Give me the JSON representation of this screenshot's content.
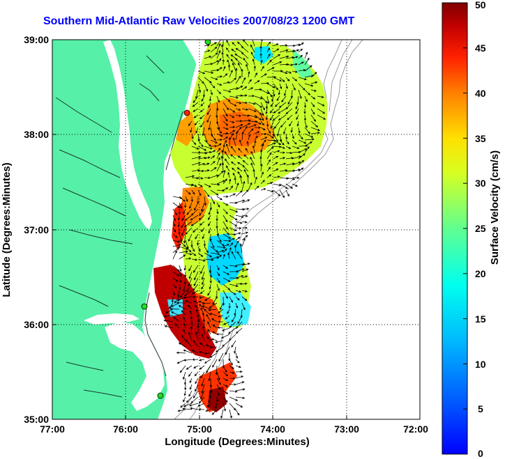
{
  "title": "Southern Mid-Atlantic Raw Velocities 2007/08/23 1200 GMT",
  "xaxis": {
    "label": "Longitude (Degrees:Minutes)",
    "ticks": [
      "77:00",
      "76:00",
      "75:00",
      "74:00",
      "73:00",
      "72:00"
    ]
  },
  "yaxis": {
    "label": "Latitude (Degrees:Minutes)",
    "ticks": [
      "39:00",
      "38:00",
      "37:00",
      "36:00",
      "35:00"
    ]
  },
  "colorbar": {
    "label": "Surface Velocity (cm/s)",
    "ticks": [
      "50",
      "45",
      "40",
      "35",
      "30",
      "25",
      "20",
      "15",
      "10",
      "5",
      "0"
    ],
    "min": 0,
    "max": 50
  },
  "colors": {
    "land": "#56f0a8",
    "title": "#0000ff",
    "station": "#22dd22"
  }
}
